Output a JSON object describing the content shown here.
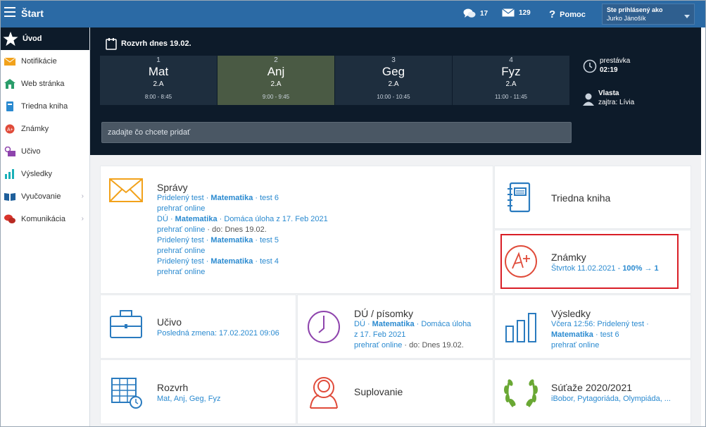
{
  "topbar": {
    "title": "Štart",
    "messages_count": "17",
    "mail_count": "129",
    "help_label": "Pomoc",
    "login_label": "Ste prihlásený ako",
    "user_name": "Jurko Jánošík"
  },
  "sidebar": {
    "items": [
      {
        "label": "Úvod",
        "icon": "star-icon"
      },
      {
        "label": "Notifikácie",
        "icon": "envelope-icon"
      },
      {
        "label": "Web stránka",
        "icon": "home-icon"
      },
      {
        "label": "Triedna kniha",
        "icon": "notebook-icon"
      },
      {
        "label": "Známky",
        "icon": "grade-icon"
      },
      {
        "label": "Učivo",
        "icon": "briefcase-icon"
      },
      {
        "label": "Výsledky",
        "icon": "bar-chart-icon"
      },
      {
        "label": "Vyučovanie",
        "icon": "book-icon"
      },
      {
        "label": "Komunikácia",
        "icon": "chat-icon"
      }
    ]
  },
  "schedule": {
    "title": "Rozvrh dnes 19.02.",
    "periods": [
      {
        "num": "1",
        "subject": "Mat",
        "class": "2.A",
        "time": "8:00 - 8:45"
      },
      {
        "num": "2",
        "subject": "Anj",
        "class": "2.A",
        "time": "9:00 - 9:45"
      },
      {
        "num": "3",
        "subject": "Geg",
        "class": "2.A",
        "time": "10:00 - 10:45"
      },
      {
        "num": "4",
        "subject": "Fyz",
        "class": "2.A",
        "time": "11:00 - 11:45"
      }
    ],
    "break_label": "prestávka",
    "break_time": "02:19",
    "person_name": "Vlasta",
    "person_sub": "zajtra: Lívia",
    "input_placeholder": "zadajte čo chcete pridať"
  },
  "cards": {
    "spravy": {
      "title": "Správy",
      "lines": [
        {
          "a": "Pridelený test · ",
          "b": "Matematika",
          "c": " · test 6"
        },
        {
          "a": "prehrať online",
          "b": "",
          "c": ""
        },
        {
          "a": "DÚ · ",
          "b": "Matematika",
          "c": " · Domáca úloha z 17. Feb 2021"
        },
        {
          "a": "prehrať online",
          "b": "",
          "c": "",
          "d": " · do: Dnes 19.02."
        },
        {
          "a": "Pridelený test · ",
          "b": "Matematika",
          "c": " · test 5"
        },
        {
          "a": "prehrať online",
          "b": "",
          "c": ""
        },
        {
          "a": "Pridelený test · ",
          "b": "Matematika",
          "c": " · test 4"
        },
        {
          "a": "prehrať online",
          "b": "",
          "c": ""
        }
      ]
    },
    "triedna": {
      "title": "Triedna kniha"
    },
    "znamky": {
      "title": "Známky",
      "sub_a": "Štvrtok 11.02.2021 - ",
      "sub_b": "100% → 1"
    },
    "ucivo": {
      "title": "Učivo",
      "sub": "Posledná zmena: 17.02.2021 09:06"
    },
    "du": {
      "title": "DÚ / písomky",
      "l1a": "DÚ · ",
      "l1b": "Matematika",
      "l1c": " · Domáca úloha",
      "l2": "z 17. Feb 2021",
      "l3a": "prehrať online",
      "l3b": " · do: Dnes 19.02."
    },
    "vysledky": {
      "title": "Výsledky",
      "l1": "Včera 12:56: Pridelený test ·",
      "l2a": "Matematika",
      "l2b": " · test 6",
      "l3": "prehrať online"
    },
    "rozvrh": {
      "title": "Rozvrh",
      "sub": "Mat, Anj, Geg, Fyz"
    },
    "suplovanie": {
      "title": "Suplovanie"
    },
    "sutaze": {
      "title": "Súťaže 2020/2021",
      "sub": "iBobor, Pytagoriáda, Olympiáda, ..."
    }
  },
  "colors": {
    "topbar": "#2b6aa5",
    "dark": "#0d1b2a",
    "link": "#2a8ad0",
    "highlight": "#d91e26"
  }
}
